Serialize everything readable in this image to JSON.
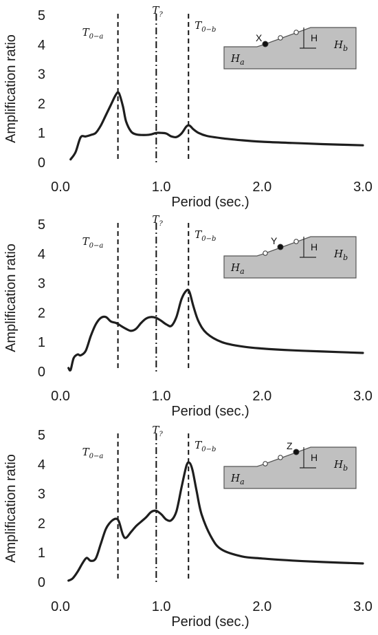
{
  "chart_data": [
    {
      "type": "line",
      "xlabel": "Period (sec.)",
      "ylabel": "Amplification ratio",
      "xlim": [
        0,
        3.0
      ],
      "ylim": [
        0,
        5
      ],
      "xticks": [
        "0.0",
        "1.0",
        "2.0",
        "3.0"
      ],
      "yticks": [
        "0",
        "1",
        "2",
        "3",
        "4",
        "5"
      ],
      "grid": false,
      "vlines": [
        {
          "label": "T",
          "sub": "0−a",
          "x": 0.57,
          "style": "dashed"
        },
        {
          "label": "T",
          "sub": "?",
          "x": 0.95,
          "style": "dashdot"
        },
        {
          "label": "T",
          "sub": "0−b",
          "x": 1.27,
          "style": "dashed"
        }
      ],
      "inset": {
        "point": "X",
        "H": "H",
        "Ha": "a",
        "Hb": "b",
        "marked_position": 0
      },
      "series": [
        {
          "x": [
            0.1,
            0.15,
            0.2,
            0.25,
            0.3,
            0.35,
            0.4,
            0.45,
            0.5,
            0.55,
            0.58,
            0.62,
            0.65,
            0.7,
            0.75,
            0.8,
            0.85,
            0.9,
            0.95,
            1.0,
            1.05,
            1.1,
            1.15,
            1.2,
            1.25,
            1.28,
            1.32,
            1.37,
            1.45,
            1.6,
            1.8,
            2.0,
            2.3,
            2.6,
            3.0
          ],
          "y": [
            0.1,
            0.35,
            0.85,
            0.88,
            0.93,
            1.0,
            1.25,
            1.6,
            1.95,
            2.3,
            2.35,
            1.9,
            1.4,
            1.05,
            0.95,
            0.93,
            0.93,
            0.95,
            1.0,
            1.0,
            0.98,
            0.88,
            0.86,
            0.98,
            1.22,
            1.25,
            1.12,
            1.0,
            0.9,
            0.82,
            0.75,
            0.7,
            0.66,
            0.62,
            0.58
          ]
        }
      ]
    },
    {
      "type": "line",
      "xlabel": "Period (sec.)",
      "ylabel": "Amplification ratio",
      "xlim": [
        0,
        3.0
      ],
      "ylim": [
        0,
        5
      ],
      "xticks": [
        "0.0",
        "1.0",
        "2.0",
        "3.0"
      ],
      "yticks": [
        "0",
        "1",
        "2",
        "3",
        "4",
        "5"
      ],
      "grid": false,
      "vlines": [
        {
          "label": "T",
          "sub": "0−a",
          "x": 0.57,
          "style": "dashed"
        },
        {
          "label": "T",
          "sub": "?",
          "x": 0.95,
          "style": "dashdot"
        },
        {
          "label": "T",
          "sub": "0−b",
          "x": 1.27,
          "style": "dashed"
        }
      ],
      "inset": {
        "point": "Y",
        "H": "H",
        "Ha": "a",
        "Hb": "b",
        "marked_position": 1
      },
      "series": [
        {
          "x": [
            0.08,
            0.1,
            0.13,
            0.17,
            0.2,
            0.25,
            0.3,
            0.35,
            0.4,
            0.45,
            0.5,
            0.55,
            0.6,
            0.65,
            0.7,
            0.75,
            0.8,
            0.85,
            0.9,
            0.95,
            1.0,
            1.05,
            1.1,
            1.15,
            1.2,
            1.25,
            1.28,
            1.32,
            1.37,
            1.45,
            1.6,
            1.8,
            2.0,
            2.3,
            2.6,
            3.0
          ],
          "y": [
            0.12,
            0.05,
            0.45,
            0.58,
            0.55,
            0.7,
            1.2,
            1.6,
            1.82,
            1.85,
            1.7,
            1.65,
            1.55,
            1.45,
            1.38,
            1.45,
            1.65,
            1.8,
            1.85,
            1.82,
            1.72,
            1.6,
            1.55,
            1.85,
            2.45,
            2.75,
            2.7,
            2.2,
            1.7,
            1.3,
            1.0,
            0.85,
            0.78,
            0.72,
            0.68,
            0.63
          ]
        }
      ]
    },
    {
      "type": "line",
      "xlabel": "Period (sec.)",
      "ylabel": "Amplification ratio",
      "xlim": [
        0,
        3.0
      ],
      "ylim": [
        0,
        5
      ],
      "xticks": [
        "0.0",
        "1.0",
        "2.0",
        "3.0"
      ],
      "yticks": [
        "0",
        "1",
        "2",
        "3",
        "4",
        "5"
      ],
      "grid": false,
      "vlines": [
        {
          "label": "T",
          "sub": "0−a",
          "x": 0.57,
          "style": "dashed"
        },
        {
          "label": "T",
          "sub": "?",
          "x": 0.95,
          "style": "dashdot"
        },
        {
          "label": "T",
          "sub": "0−b",
          "x": 1.27,
          "style": "dashed"
        }
      ],
      "inset": {
        "point": "Z",
        "H": "H",
        "Ha": "a",
        "Hb": "b",
        "marked_position": 2
      },
      "series": [
        {
          "x": [
            0.08,
            0.12,
            0.17,
            0.22,
            0.26,
            0.3,
            0.35,
            0.4,
            0.45,
            0.5,
            0.55,
            0.58,
            0.62,
            0.65,
            0.7,
            0.75,
            0.8,
            0.85,
            0.9,
            0.95,
            1.0,
            1.05,
            1.1,
            1.15,
            1.2,
            1.25,
            1.28,
            1.31,
            1.35,
            1.4,
            1.5,
            1.6,
            1.8,
            2.0,
            2.3,
            2.6,
            3.0
          ],
          "y": [
            0.05,
            0.12,
            0.35,
            0.65,
            0.82,
            0.72,
            0.8,
            1.3,
            1.8,
            2.05,
            2.15,
            2.05,
            1.6,
            1.5,
            1.7,
            1.9,
            2.05,
            2.2,
            2.38,
            2.42,
            2.3,
            2.12,
            2.1,
            2.4,
            3.2,
            3.95,
            4.05,
            3.8,
            3.1,
            2.3,
            1.5,
            1.1,
            0.87,
            0.8,
            0.73,
            0.68,
            0.63
          ]
        }
      ]
    }
  ]
}
